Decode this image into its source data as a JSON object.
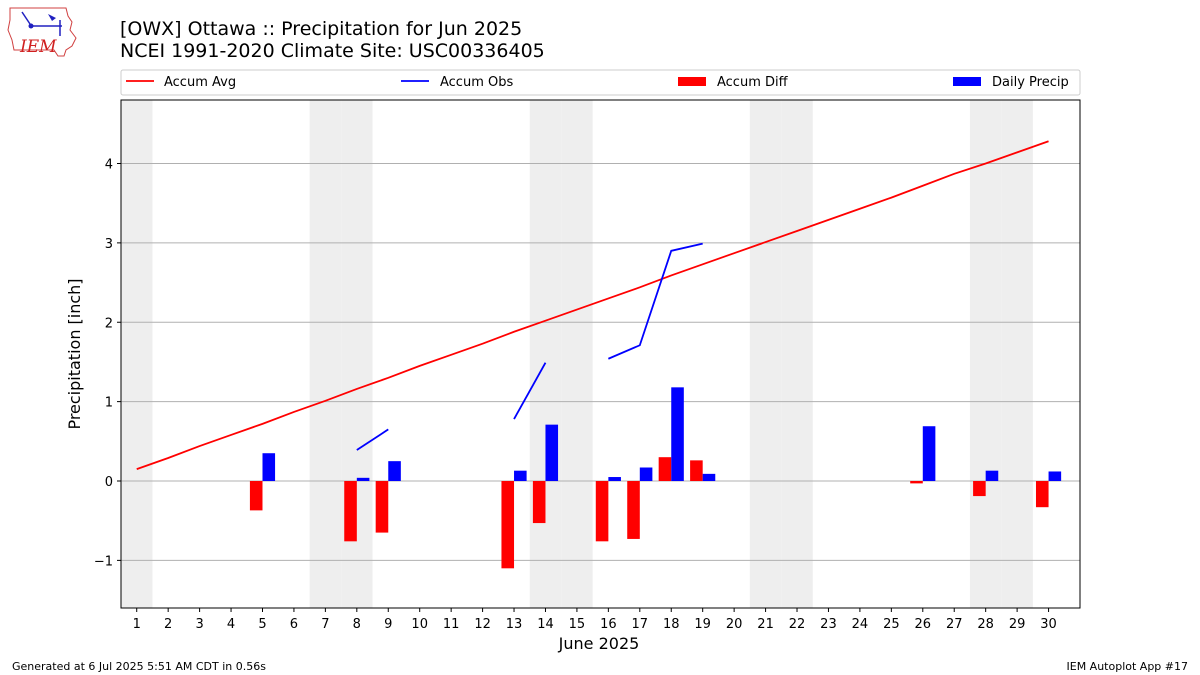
{
  "header": {
    "title_line1": "[OWX] Ottawa :: Precipitation for Jun 2025",
    "title_line2": "NCEI 1991-2020 Climate Site: USC00336405"
  },
  "logo": {
    "text": "IEM",
    "icon": "iem-iowa-logo"
  },
  "footer": {
    "left": "Generated at 6 Jul 2025 5:51 AM CDT in 0.56s",
    "right": "IEM Autoplot App #17"
  },
  "colors": {
    "avg": "#ff0000",
    "obs": "#0000ff",
    "diff": "#ff0000",
    "daily": "#0000ff",
    "weekend": "#eeeeee",
    "grid": "#b0b0b0"
  },
  "chart_data": {
    "type": "bar",
    "title": "[OWX] Ottawa :: Precipitation for Jun 2025",
    "xlabel": "June 2025",
    "ylabel": "Precipitation [inch]",
    "xlim": [
      0.5,
      31.0
    ],
    "ylim": [
      -1.6,
      4.8
    ],
    "x_ticks": [
      1,
      2,
      3,
      4,
      5,
      6,
      7,
      8,
      9,
      10,
      11,
      12,
      13,
      14,
      15,
      16,
      17,
      18,
      19,
      20,
      21,
      22,
      23,
      24,
      25,
      26,
      27,
      28,
      29,
      30
    ],
    "y_ticks": [
      -1,
      0,
      1,
      2,
      3,
      4
    ],
    "y_tick_labels": [
      "−1",
      "0",
      "1",
      "2",
      "3",
      "4"
    ],
    "grid": "y",
    "legend_position": "top",
    "weekend_days": [
      1,
      7,
      8,
      14,
      15,
      21,
      22,
      28,
      29
    ],
    "legend": [
      {
        "label": "Accum Avg",
        "kind": "line",
        "color": "#ff0000"
      },
      {
        "label": "Accum Obs",
        "kind": "line",
        "color": "#0000ff"
      },
      {
        "label": "Accum Diff",
        "kind": "bar",
        "color": "#ff0000"
      },
      {
        "label": "Daily Precip",
        "kind": "bar",
        "color": "#0000ff"
      }
    ],
    "series": [
      {
        "name": "Accum Avg",
        "kind": "line",
        "days": [
          1,
          2,
          3,
          4,
          5,
          6,
          7,
          8,
          9,
          10,
          11,
          12,
          13,
          14,
          15,
          16,
          17,
          18,
          19,
          20,
          21,
          22,
          23,
          24,
          25,
          26,
          27,
          28,
          29,
          30
        ],
        "values": [
          0.15,
          0.29,
          0.44,
          0.58,
          0.72,
          0.87,
          1.01,
          1.16,
          1.3,
          1.45,
          1.59,
          1.73,
          1.88,
          2.02,
          2.16,
          2.3,
          2.44,
          2.59,
          2.73,
          2.87,
          3.01,
          3.15,
          3.29,
          3.43,
          3.57,
          3.72,
          3.87,
          4.0,
          4.14,
          4.28
        ]
      },
      {
        "name": "Accum Obs",
        "kind": "line",
        "segments": [
          {
            "days": [
              8,
              9
            ],
            "values": [
              0.39,
              0.65
            ]
          },
          {
            "days": [
              13,
              14
            ],
            "values": [
              0.78,
              1.49
            ]
          },
          {
            "days": [
              16,
              17,
              18,
              19
            ],
            "values": [
              1.54,
              1.71,
              2.9,
              2.99
            ]
          }
        ]
      },
      {
        "name": "Accum Diff",
        "kind": "bar",
        "days": [
          5,
          8,
          9,
          13,
          14,
          16,
          17,
          18,
          19,
          26,
          28,
          30
        ],
        "values": [
          -0.37,
          -0.76,
          -0.65,
          -1.1,
          -0.53,
          -0.76,
          -0.73,
          0.3,
          0.26,
          -0.03,
          -0.19,
          -0.33
        ]
      },
      {
        "name": "Daily Precip",
        "kind": "bar",
        "days": [
          5,
          8,
          9,
          13,
          14,
          16,
          17,
          18,
          19,
          26,
          28,
          30
        ],
        "values": [
          0.35,
          0.04,
          0.25,
          0.13,
          0.71,
          0.05,
          0.17,
          1.18,
          0.09,
          0.69,
          0.13,
          0.12
        ]
      }
    ]
  }
}
